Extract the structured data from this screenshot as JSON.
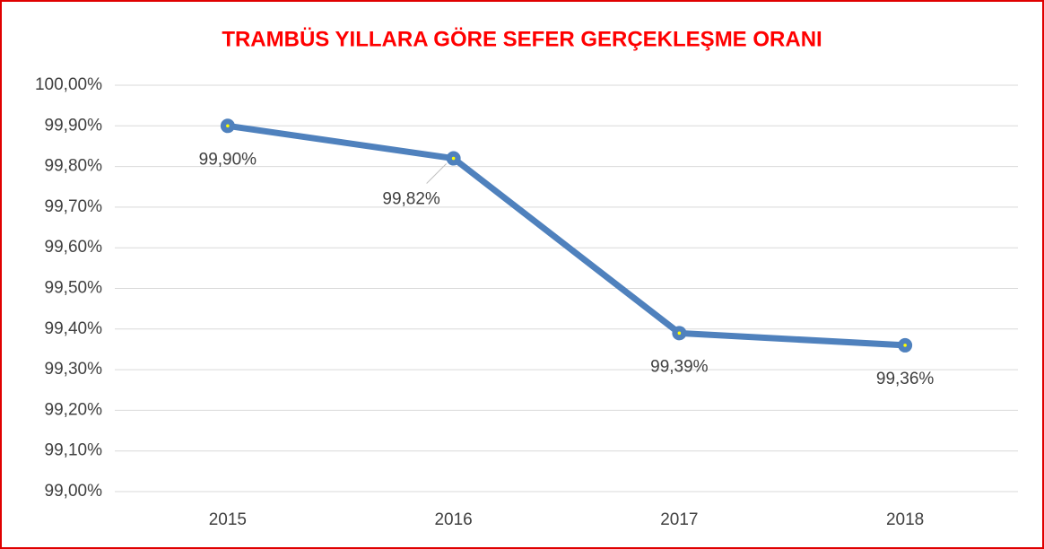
{
  "chart_data": {
    "type": "line",
    "title": "TRAMBÜS YILLARA GÖRE SEFER GERÇEKLEŞME ORANI",
    "categories": [
      "2015",
      "2016",
      "2017",
      "2018"
    ],
    "series": [
      {
        "color": "#4f81bd",
        "values": [
          99.9,
          99.82,
          99.39,
          99.36
        ],
        "value_labels": [
          "99,90%",
          "99,82%",
          "99,39%",
          "99,36%"
        ]
      }
    ],
    "ylim": [
      99.0,
      100.0
    ],
    "yticks": [
      {
        "value": 99.0,
        "label": "99,00%"
      },
      {
        "value": 99.1,
        "label": "99,10%"
      },
      {
        "value": 99.2,
        "label": "99,20%"
      },
      {
        "value": 99.3,
        "label": "99,30%"
      },
      {
        "value": 99.4,
        "label": "99,40%"
      },
      {
        "value": 99.5,
        "label": "99,50%"
      },
      {
        "value": 99.6,
        "label": "99,60%"
      },
      {
        "value": 99.7,
        "label": "99,70%"
      },
      {
        "value": 99.8,
        "label": "99,80%"
      },
      {
        "value": 99.9,
        "label": "99,90%"
      },
      {
        "value": 100.0,
        "label": "100,00%"
      }
    ],
    "grid": true
  }
}
